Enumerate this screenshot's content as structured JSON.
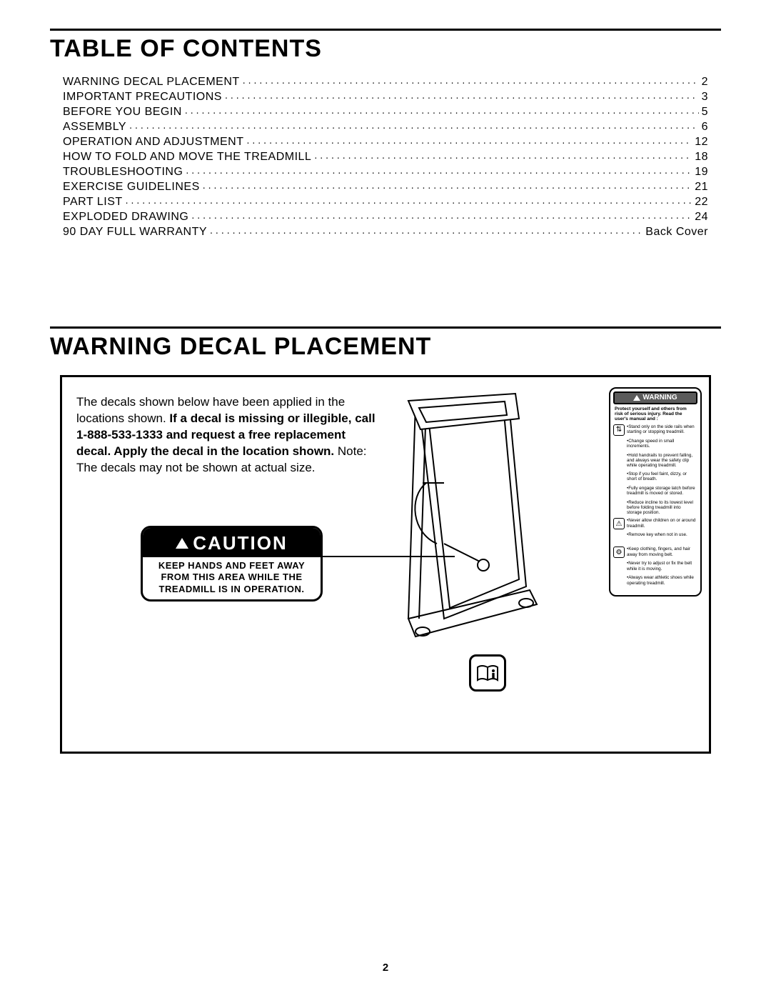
{
  "page_number": "2",
  "colors": {
    "text": "#000000",
    "background": "#ffffff",
    "rule": "#000000",
    "caution_header_bg": "#000000",
    "caution_header_fg": "#ffffff",
    "warning_header_bg": "#5b5b5b"
  },
  "toc": {
    "title": "TABLE OF CONTENTS",
    "items": [
      {
        "label": "WARNING DECAL PLACEMENT",
        "page": "2"
      },
      {
        "label": "IMPORTANT PRECAUTIONS",
        "page": "3"
      },
      {
        "label": "BEFORE YOU BEGIN",
        "page": "5"
      },
      {
        "label": "ASSEMBLY",
        "page": "6"
      },
      {
        "label": "OPERATION AND ADJUSTMENT",
        "page": "12"
      },
      {
        "label": "HOW TO FOLD AND MOVE THE TREADMILL",
        "page": "18"
      },
      {
        "label": "TROUBLESHOOTING",
        "page": "19"
      },
      {
        "label": "EXERCISE GUIDELINES",
        "page": "21"
      },
      {
        "label": "PART LIST",
        "page": "22"
      },
      {
        "label": "EXPLODED DRAWING",
        "page": "24"
      },
      {
        "label": "90 DAY FULL WARRANTY",
        "page": "Back Cover"
      }
    ],
    "dot_char": "."
  },
  "placement": {
    "title": "WARNING DECAL PLACEMENT",
    "intro": {
      "p1": "The decals shown below have been applied in the locations shown. ",
      "bold": "If a decal is missing or illegible, call 1-888-533-1333 and request a free replacement decal. Apply the decal in the location shown.",
      "p2": " Note: The decals may not be shown at actual size."
    },
    "caution": {
      "word": "CAUTION",
      "body_l1": "KEEP HANDS AND FEET AWAY",
      "body_l2": "FROM THIS AREA WHILE THE",
      "body_l3": "TREADMILL IS IN OPERATION."
    },
    "warning": {
      "word": "WARNING",
      "intro": "Protect yourself and others from risk of serious injury. Read the user's manual and :",
      "items": [
        {
          "icon": "rails",
          "text": "•Stand only on the side rails when starting or stopping treadmill."
        },
        {
          "icon": "",
          "text": "•Change speed in small increments."
        },
        {
          "icon": "",
          "text": "•Hold handrails to prevent falling, and always wear the safety clip while operating treadmill."
        },
        {
          "icon": "",
          "text": "•Stop if you feel faint, dizzy, or short of breath."
        },
        {
          "icon": "",
          "text": "•Fully engage storage latch before treadmill is moved or stored."
        },
        {
          "icon": "",
          "text": "•Reduce incline to its lowest level before folding treadmill into storage position."
        },
        {
          "icon": "child",
          "text": "•Never allow children on or around treadmill."
        },
        {
          "icon": "",
          "text": "•Remove key when not in use."
        },
        {
          "icon": "belt",
          "text": "•Keep clothing, fingers, and hair away from moving belt."
        },
        {
          "icon": "",
          "text": "•Never try to adjust or fix the belt while it is moving."
        },
        {
          "icon": "",
          "text": "•Always wear athletic shoes while operating treadmill."
        }
      ]
    }
  }
}
